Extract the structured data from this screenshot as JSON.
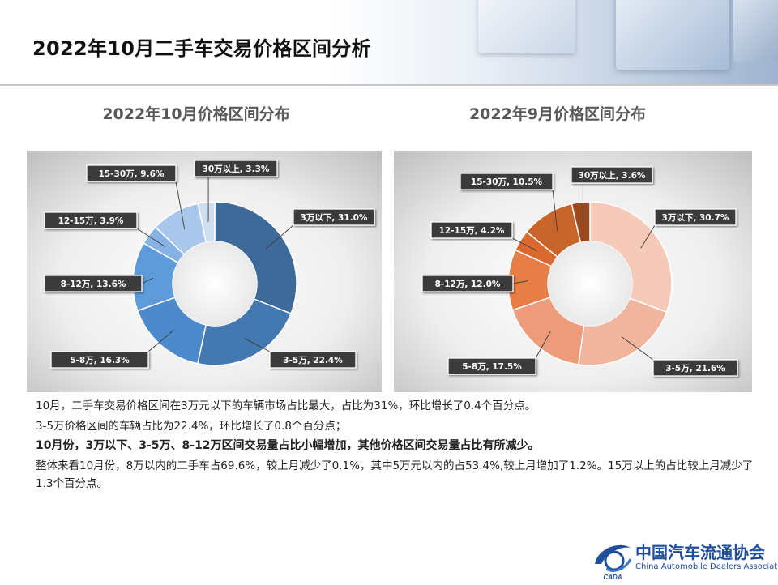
{
  "page": {
    "title": "2022年10月二手车交易价格区间分析"
  },
  "chart_data": [
    {
      "type": "donut",
      "title": "2022年10月价格区间分布",
      "categories": [
        "3万以下",
        "3-5万",
        "5-8万",
        "8-12万",
        "12-15万",
        "15-30万",
        "30万以上"
      ],
      "values": [
        31.0,
        22.4,
        16.3,
        13.6,
        3.9,
        9.6,
        3.3
      ],
      "labels": [
        "3万以下, 31.0%",
        "3-5万, 22.4%",
        "5-8万, 16.3%",
        "8-12万, 13.6%",
        "12-15万, 3.9%",
        "15-30万, 9.6%",
        "30万以上, 3.3%"
      ],
      "colors": [
        "#3d6a99",
        "#4379b0",
        "#4d8acc",
        "#5e9bdb",
        "#86b3e4",
        "#a9c7ea",
        "#cfdff2"
      ],
      "unit": "%"
    },
    {
      "type": "donut",
      "title": "2022年9月价格区间分布",
      "categories": [
        "3万以下",
        "3-5万",
        "5-8万",
        "8-12万",
        "12-15万",
        "15-30万",
        "30万以上"
      ],
      "values": [
        30.7,
        21.6,
        17.5,
        12.0,
        4.2,
        10.5,
        3.6
      ],
      "labels": [
        "3万以下, 30.7%",
        "3-5万, 21.6%",
        "5-8万, 17.5%",
        "8-12万, 12.0%",
        "12-15万, 4.2%",
        "15-30万, 10.5%",
        "30万以上, 3.6%"
      ],
      "colors": [
        "#f6cab9",
        "#f1b49c",
        "#ec9c7b",
        "#e77e47",
        "#d9692e",
        "#c8652a",
        "#9c4a1d"
      ],
      "unit": "%"
    }
  ],
  "analysis": {
    "line1": "10月，二手车交易价格区间在3万元以下的车辆市场占比最大，占比为31%，环比增长了0.4个百分点。",
    "line2": "3-5万价格区间的车辆占比为22.4%，环比增长了0.8个百分点；",
    "line3": "10月份，3万以下、3-5万、8-12万区间交易量占比小幅增加，其他价格区间交易量占比有所减少。",
    "line4": "整体来看10月份，8万以内的二手车占69.6%，较上月减少了0.1%，其中5万元以内的占53.4%,较上月增加了1.2%。15万以上的占比较上月减少了1.3个百分点。"
  },
  "logo": {
    "name_cn": "中国汽车流通协会",
    "name_en": "China Automobile Dealers Association",
    "mark_text": "CADA"
  }
}
